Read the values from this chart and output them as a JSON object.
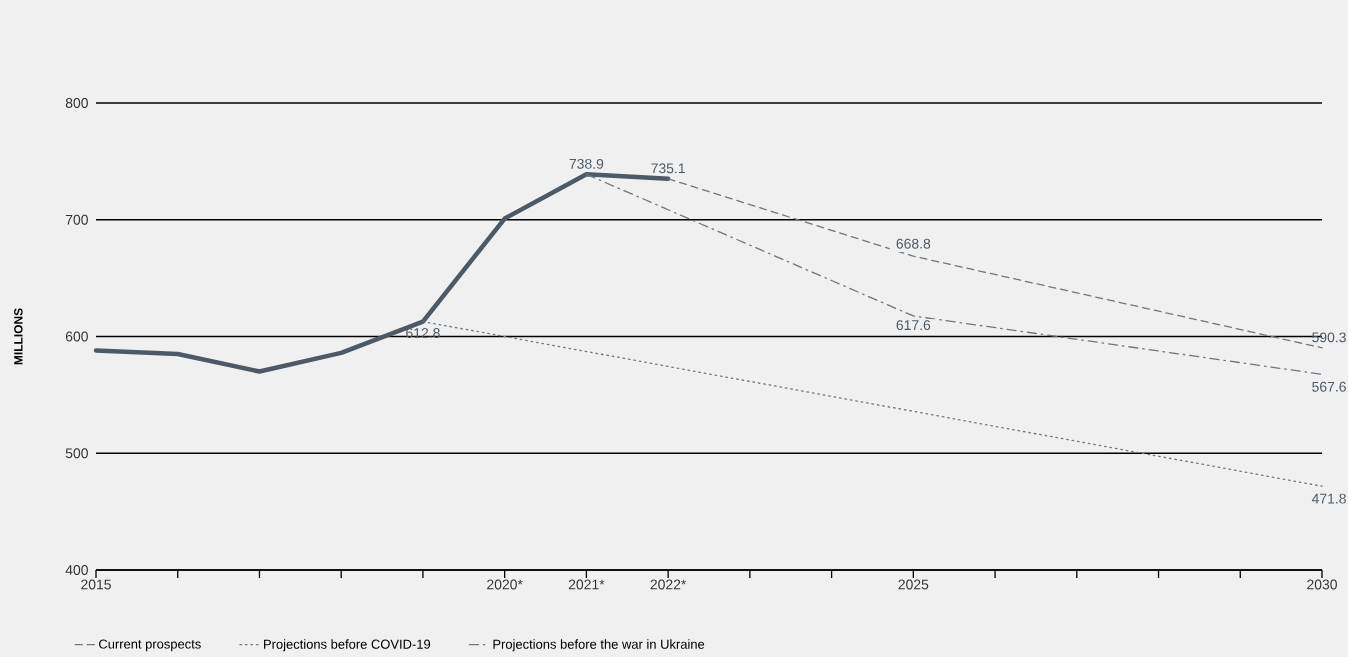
{
  "chart_data": {
    "type": "line",
    "ylabel": "MILLIONS",
    "xlim": [
      2015,
      2030
    ],
    "ylim": [
      400,
      800
    ],
    "yticks": [
      400,
      500,
      600,
      700,
      800
    ],
    "xticks": [
      2015,
      {
        "value": 2016,
        "label": null
      },
      {
        "value": 2017,
        "label": null
      },
      {
        "value": 2018,
        "label": null
      },
      {
        "value": 2019,
        "label": null
      },
      {
        "value": 2020,
        "label": "2020*"
      },
      {
        "value": 2021,
        "label": "2021*"
      },
      {
        "value": 2022,
        "label": "2022*"
      },
      {
        "value": 2023,
        "label": null
      },
      {
        "value": 2024,
        "label": null
      },
      2025,
      {
        "value": 2026,
        "label": null
      },
      {
        "value": 2027,
        "label": null
      },
      {
        "value": 2028,
        "label": null
      },
      {
        "value": 2029,
        "label": null
      },
      2030
    ],
    "grid": "y",
    "legend": "bottom",
    "marker": "none",
    "series": [
      {
        "color": "#4d5964",
        "line_style": "solid",
        "x": [
          2015,
          2016,
          2017,
          2018,
          2019,
          2020,
          2021,
          2022
        ],
        "values": [
          588,
          585,
          570,
          586,
          612.8,
          701,
          738.9,
          735.1
        ]
      },
      {
        "name": "Current prospects",
        "color": "#6e767e",
        "line_style": "dashed",
        "x": [
          2022,
          2025,
          2030
        ],
        "values": [
          735.1,
          668.8,
          590.3
        ]
      },
      {
        "name": "Projections before COVID-19",
        "color": "#6e767e",
        "line_style": "dotted",
        "x": [
          2019,
          2030
        ],
        "values": [
          612.8,
          471.8
        ]
      },
      {
        "name": "Projections before the war in Ukraine",
        "color": "#6e767e",
        "line_style": "dashdot",
        "x": [
          2021,
          2025,
          2030
        ],
        "values": [
          738.9,
          617.6,
          567.6
        ]
      }
    ],
    "annotations": [
      {
        "text": "612.8",
        "x": 2019,
        "y": 612.8
      },
      {
        "text": "738.9",
        "x": 2021,
        "y": 738.9
      },
      {
        "text": "735.1",
        "x": 2022,
        "y": 735.1
      },
      {
        "text": "668.8",
        "x": 2025,
        "y": 668.8
      },
      {
        "text": "617.6",
        "x": 2025,
        "y": 617.6
      },
      {
        "text": "590.3",
        "x": 2030,
        "y": 590.3
      },
      {
        "text": "567.6",
        "x": 2030,
        "y": 567.6
      },
      {
        "text": "471.8",
        "x": 2030,
        "y": 471.8
      }
    ]
  }
}
